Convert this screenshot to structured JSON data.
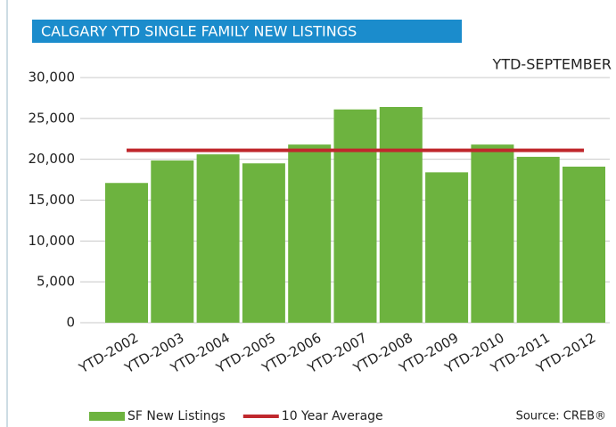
{
  "chart_data": {
    "type": "bar",
    "title": "CALGARY YTD SINGLE FAMILY NEW LISTINGS",
    "subtitle": "YTD-SEPTEMBER",
    "source": "Source: CREB®",
    "categories": [
      "YTD-2002",
      "YTD-2003",
      "YTD-2004",
      "YTD-2005",
      "YTD-2006",
      "YTD-2007",
      "YTD-2008",
      "YTD-2009",
      "YTD-2010",
      "YTD-2011",
      "YTD-2012"
    ],
    "series": [
      {
        "name": "SF New Listings",
        "type": "bar",
        "color": "#6db33f",
        "values": [
          17100,
          19850,
          20600,
          19500,
          21800,
          26100,
          26400,
          18400,
          21800,
          20300,
          19100
        ]
      },
      {
        "name": "10 Year Average",
        "type": "line",
        "color": "#c0282d",
        "values": [
          21100,
          21100,
          21100,
          21100,
          21100,
          21100,
          21100,
          21100,
          21100,
          21100,
          21100
        ]
      }
    ],
    "ylim": [
      0,
      30000
    ],
    "yticks": [
      0,
      {
        "value": 5000,
        "label": "5,000"
      },
      {
        "value": 10000,
        "label": "10,000"
      },
      {
        "value": 15000,
        "label": "15,000"
      },
      {
        "value": 20000,
        "label": "20,000"
      },
      {
        "value": 25000,
        "label": "25,000"
      },
      {
        "value": 30000,
        "label": "30,000"
      }
    ],
    "grid": true,
    "legend": "bottom"
  }
}
